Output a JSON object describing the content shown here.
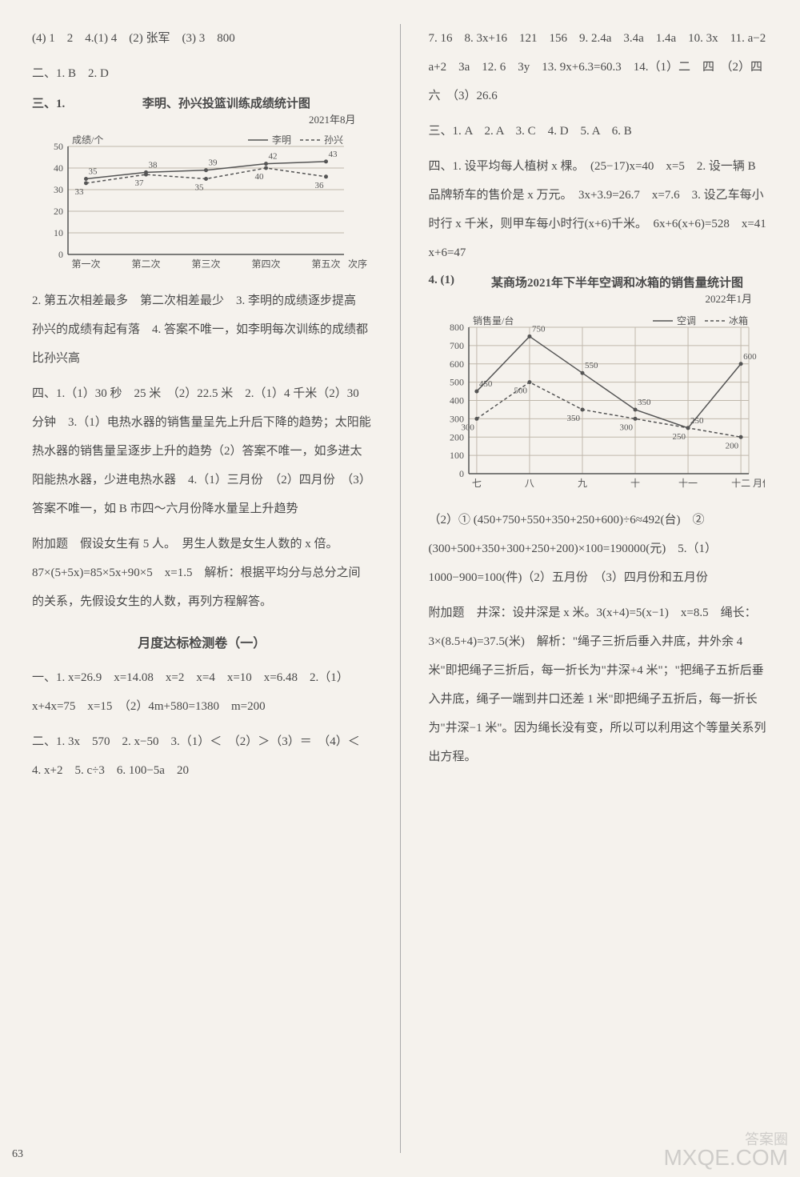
{
  "leftColumn": {
    "line1": "(4) 1　2　4.(1) 4　(2) 张军　(3) 3　800",
    "line2": "二、1. B　2. D",
    "chart1": {
      "prefix": "三、1.",
      "title": "李明、孙兴投篮训练成绩统计图",
      "date": "2021年8月",
      "legend": {
        "a": "李明",
        "b": "孙兴"
      },
      "ylabel": "成绩/个",
      "xlabel": "次序",
      "xcategories": [
        "第一次",
        "第二次",
        "第三次",
        "第四次",
        "第五次"
      ],
      "ymax": 50,
      "ystep": 10,
      "series1": {
        "name": "李明",
        "values": [
          35,
          38,
          39,
          42,
          43
        ],
        "color": "#555",
        "dash": "0"
      },
      "series2": {
        "name": "孙兴",
        "values": [
          33,
          37,
          35,
          40,
          36
        ],
        "color": "#555",
        "dash": "4,3"
      },
      "grid_color": "#c0b8ac",
      "axis_color": "#555",
      "background": "#f5f2ed"
    },
    "line3": "2. 第五次相差最多　第二次相差最少　3. 李明的成绩逐步提高　孙兴的成绩有起有落　4. 答案不唯一，如李明每次训练的成绩都比孙兴高",
    "line4": "四、1.（1）30 秒　25 米　（2）22.5 米　2.（1）4 千米（2）30 分钟　3.（1）电热水器的销售量呈先上升后下降的趋势；太阳能热水器的销售量呈逐步上升的趋势（2）答案不唯一，如多进太阳能热水器，少进电热水器　4.（1）三月份　（2）四月份　（3）答案不唯一，如 B 市四～六月份降水量呈上升趋势",
    "line5": "附加题　假设女生有 5 人。　男生人数是女生人数的 x 倍。　87×(5+5x)=85×5x+90×5　x=1.5　解析：根据平均分与总分之间的关系，先假设女生的人数，再列方程解答。",
    "monthlyTitle": "月度达标检测卷（一）",
    "line6": "一、1. x=26.9　x=14.08　x=2　x=4　x=10　x=6.48　2.（1）x+4x=75　x=15　（2）4m+580=1380　m=200",
    "line7": "二、1. 3x　570　2. x−50　3.（1）＜　（2）＞（3）＝　（4）＜　4. x+2　5. c÷3　6. 100−5a　20"
  },
  "rightColumn": {
    "line1": "7. 16　8. 3x+16　121　156　9. 2.4a　3.4a　1.4a　10. 3x　11. a−2　a+2　3a　12. 6　3y　13. 9x+6.3=60.3　14.（1）二　四　（2）四　六　（3）26.6",
    "line2": "三、1. A　2. A　3. C　4. D　5. A　6. B",
    "line3": "四、1. 设平均每人植树 x 棵。　(25−17)x=40　x=5　2. 设一辆 B 品牌轿车的售价是 x 万元。　3x+3.9=26.7　x=7.6　3. 设乙车每小时行 x 千米，则甲车每小时行(x+6)千米。　6x+6(x+6)=528　x=41　x+6=47",
    "chart2": {
      "prefix": "4. (1)",
      "title": "某商场2021年下半年空调和冰箱的销售量统计图",
      "date": "2022年1月",
      "legend": {
        "a": "空调",
        "b": "冰箱"
      },
      "ylabel": "销售量/台",
      "xlabel": "月份",
      "xcategories": [
        "七",
        "八",
        "九",
        "十",
        "十一",
        "十二"
      ],
      "ymax": 800,
      "ystep": 100,
      "series1": {
        "name": "空调",
        "values": [
          450,
          750,
          550,
          350,
          250,
          600
        ],
        "color": "#555",
        "dash": "0"
      },
      "series2": {
        "name": "冰箱",
        "values": [
          300,
          500,
          350,
          300,
          250,
          200
        ],
        "color": "#555",
        "dash": "4,3"
      },
      "grid_color": "#c0b8ac",
      "axis_color": "#555",
      "background": "#f5f2ed"
    },
    "line4": "（2）① (450+750+550+350+250+600)÷6≈492(台)　② (300+500+350+300+250+200)×100=190000(元)　5.（1）1000−900=100(件)（2）五月份　（3）四月份和五月份",
    "line5": "附加题　井深：设井深是 x 米。3(x+4)=5(x−1)　x=8.5　绳长：3×(8.5+4)=37.5(米)　解析：\"绳子三折后垂入井底，井外余 4 米\"即把绳子三折后，每一折长为\"井深+4 米\"；\"把绳子五折后垂入井底，绳子一端到井口还差 1 米\"即把绳子五折后，每一折长为\"井深−1 米\"。因为绳长没有变，所以可以利用这个等量关系列出方程。"
  },
  "pageNum": "63",
  "watermark": {
    "top": "答案圈",
    "bottom": "MXQE.COM"
  }
}
